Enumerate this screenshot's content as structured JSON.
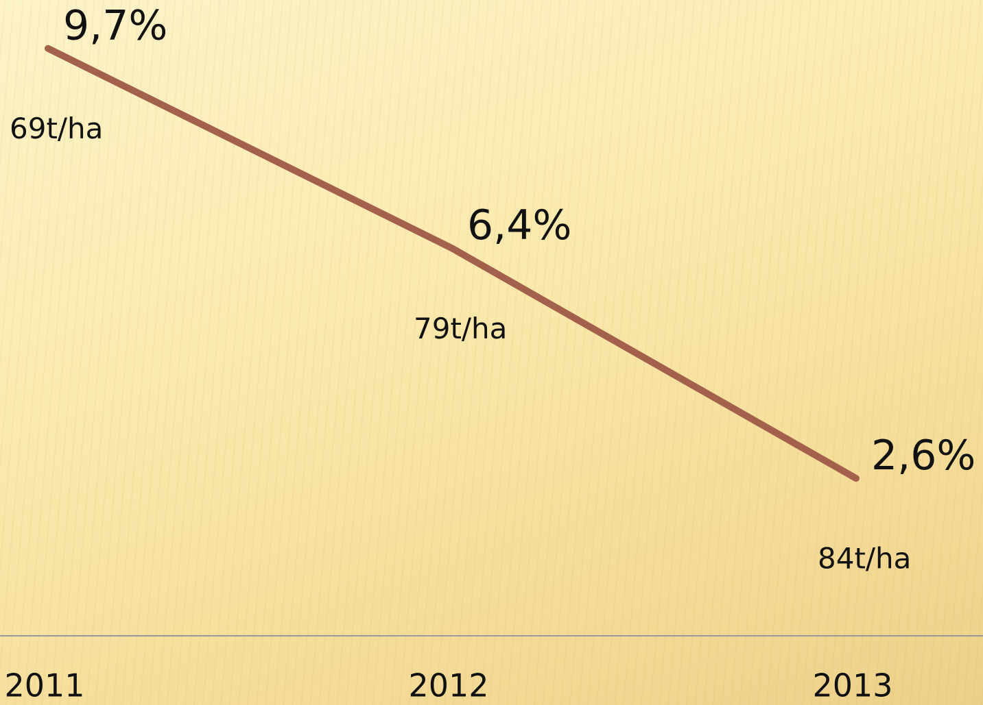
{
  "chart_data": {
    "type": "line",
    "categories": [
      "2011",
      "2012",
      "2013"
    ],
    "series": [
      {
        "color": "#a3614b",
        "values": [
          9.7,
          6.4,
          2.6
        ],
        "value_labels": [
          "9,7%",
          "6,4%",
          "2,6%"
        ]
      }
    ],
    "annotations": [
      "69t/ha",
      "79t/ha",
      "84t/ha"
    ],
    "ylim": [
      0,
      10.5
    ]
  }
}
